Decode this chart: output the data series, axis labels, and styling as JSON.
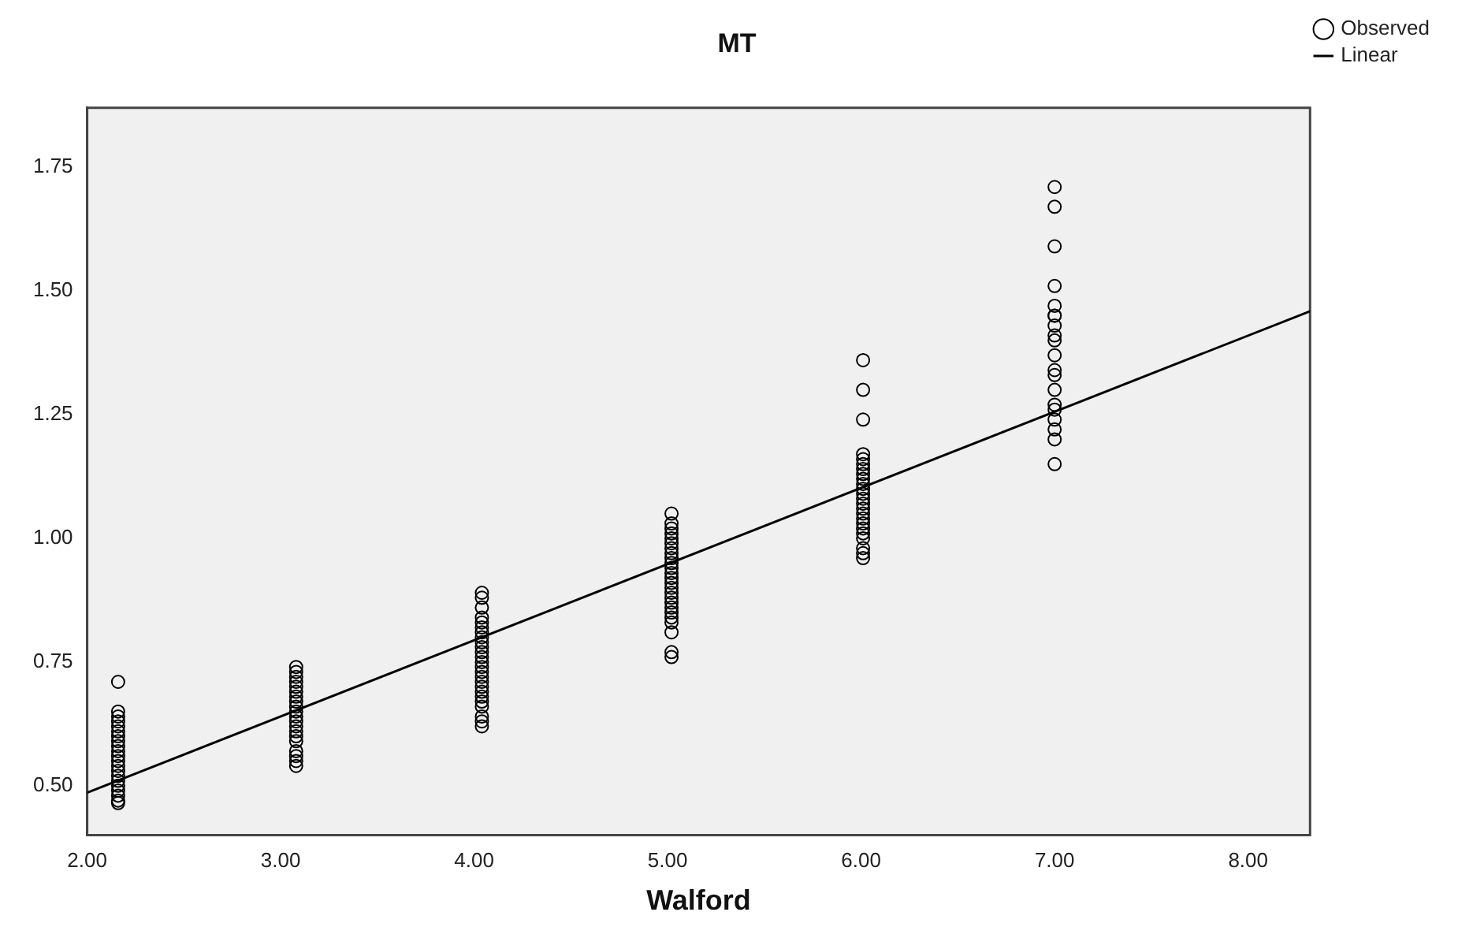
{
  "chart_data": {
    "type": "scatter",
    "title": "MT",
    "xlabel": "Walford",
    "legend": "top right",
    "grid": false,
    "xlim": [
      2.0,
      8.32
    ],
    "ylim": [
      0.4,
      1.87
    ],
    "xticks": [
      {
        "value": 2,
        "label": "2.00"
      },
      {
        "value": 3,
        "label": "3.00"
      },
      {
        "value": 4,
        "label": "4.00"
      },
      {
        "value": 5,
        "label": "5.00"
      },
      {
        "value": 6,
        "label": "6.00"
      },
      {
        "value": 7,
        "label": "7.00"
      },
      {
        "value": 8,
        "label": "8.00"
      }
    ],
    "yticks": [
      {
        "value": 0.5,
        "label": "0.50"
      },
      {
        "value": 0.75,
        "label": "0.75"
      },
      {
        "value": 1.0,
        "label": "1.00"
      },
      {
        "value": 1.25,
        "label": "1.25"
      },
      {
        "value": 1.5,
        "label": "1.50"
      },
      {
        "value": 1.75,
        "label": "1.75"
      }
    ],
    "series": [
      {
        "name": "Observed",
        "marker": "circle",
        "color": "#000000",
        "x": [
          2.16,
          2.16,
          2.16,
          2.16,
          2.16,
          2.16,
          2.16,
          2.16,
          2.16,
          2.16,
          2.16,
          2.16,
          2.16,
          2.16,
          2.16,
          2.16,
          2.16,
          2.16,
          2.16,
          2.16,
          2.16,
          3.08,
          3.08,
          3.08,
          3.08,
          3.08,
          3.08,
          3.08,
          3.08,
          3.08,
          3.08,
          3.08,
          3.08,
          3.08,
          3.08,
          3.08,
          3.08,
          3.08,
          3.08,
          3.08,
          3.08,
          4.04,
          4.04,
          4.04,
          4.04,
          4.04,
          4.04,
          4.04,
          4.04,
          4.04,
          4.04,
          4.04,
          4.04,
          4.04,
          4.04,
          4.04,
          4.04,
          4.04,
          4.04,
          4.04,
          4.04,
          4.04,
          4.04,
          4.04,
          4.04,
          4.04,
          5.02,
          5.02,
          5.02,
          5.02,
          5.02,
          5.02,
          5.02,
          5.02,
          5.02,
          5.02,
          5.02,
          5.02,
          5.02,
          5.02,
          5.02,
          5.02,
          5.02,
          5.02,
          5.02,
          5.02,
          5.02,
          5.02,
          5.02,
          5.02,
          5.02,
          6.01,
          6.01,
          6.01,
          6.01,
          6.01,
          6.01,
          6.01,
          6.01,
          6.01,
          6.01,
          6.01,
          6.01,
          6.01,
          6.01,
          6.01,
          6.01,
          6.01,
          6.01,
          6.01,
          6.01,
          6.01,
          6.01,
          6.01,
          6.01,
          7.0,
          7.0,
          7.0,
          7.0,
          7.0,
          7.0,
          7.0,
          7.0,
          7.0,
          7.0,
          7.0,
          7.0,
          7.0,
          7.0,
          7.0,
          7.0,
          7.0,
          7.0,
          7.0,
          7.0
        ],
        "values": [
          0.71,
          0.65,
          0.64,
          0.63,
          0.62,
          0.61,
          0.6,
          0.59,
          0.58,
          0.57,
          0.56,
          0.55,
          0.54,
          0.53,
          0.52,
          0.51,
          0.5,
          0.49,
          0.48,
          0.47,
          0.465,
          0.74,
          0.73,
          0.72,
          0.71,
          0.7,
          0.69,
          0.68,
          0.67,
          0.66,
          0.65,
          0.64,
          0.63,
          0.62,
          0.61,
          0.6,
          0.59,
          0.57,
          0.56,
          0.55,
          0.54,
          0.89,
          0.88,
          0.86,
          0.84,
          0.83,
          0.82,
          0.81,
          0.8,
          0.79,
          0.78,
          0.77,
          0.76,
          0.75,
          0.74,
          0.73,
          0.72,
          0.71,
          0.7,
          0.69,
          0.68,
          0.67,
          0.66,
          0.64,
          0.63,
          0.62,
          1.05,
          1.03,
          1.02,
          1.01,
          1.0,
          0.99,
          0.98,
          0.97,
          0.96,
          0.95,
          0.94,
          0.93,
          0.92,
          0.91,
          0.9,
          0.89,
          0.88,
          0.87,
          0.86,
          0.85,
          0.84,
          0.83,
          0.81,
          0.77,
          0.76,
          1.36,
          1.3,
          1.24,
          1.17,
          1.16,
          1.15,
          1.14,
          1.13,
          1.12,
          1.11,
          1.1,
          1.09,
          1.08,
          1.07,
          1.06,
          1.05,
          1.04,
          1.03,
          1.02,
          1.01,
          1.0,
          0.98,
          0.97,
          0.96,
          1.71,
          1.67,
          1.59,
          1.51,
          1.47,
          1.45,
          1.45,
          1.43,
          1.41,
          1.4,
          1.37,
          1.34,
          1.33,
          1.3,
          1.27,
          1.26,
          1.24,
          1.22,
          1.2,
          1.15
        ]
      },
      {
        "name": "Linear",
        "type": "line",
        "marker": "none",
        "color": "#000000",
        "line_style": "solid",
        "x": [
          2.0,
          8.32
        ],
        "values": [
          0.486,
          1.459
        ]
      }
    ]
  }
}
